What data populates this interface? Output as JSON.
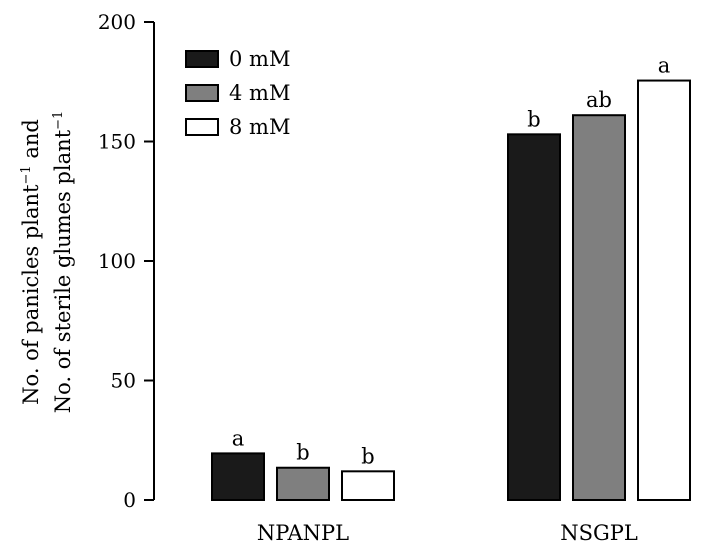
{
  "chart_data": {
    "type": "bar",
    "title": "",
    "xlabel": "",
    "ylabel_line1": "No. of panicles plant",
    "ylabel_line1_suffix": " and",
    "ylabel_line2": "No. of sterile glumes plant",
    "ylabel_exponent": "−1",
    "categories": [
      "NPANPL",
      "NSGPL"
    ],
    "ylim": [
      0,
      200
    ],
    "yticks": [
      0,
      50,
      100,
      150,
      200
    ],
    "legend_position": "top-left",
    "series": [
      {
        "name": "0 mM",
        "color": "#1a1a1a",
        "values": [
          19.5,
          153
        ],
        "labels": [
          "a",
          "b"
        ]
      },
      {
        "name": "4 mM",
        "color": "#7f7f7f",
        "values": [
          13.5,
          161
        ],
        "labels": [
          "b",
          "ab"
        ]
      },
      {
        "name": "8 mM",
        "color": "#ffffff",
        "values": [
          12,
          175.5
        ],
        "labels": [
          "b",
          "a"
        ]
      }
    ]
  }
}
